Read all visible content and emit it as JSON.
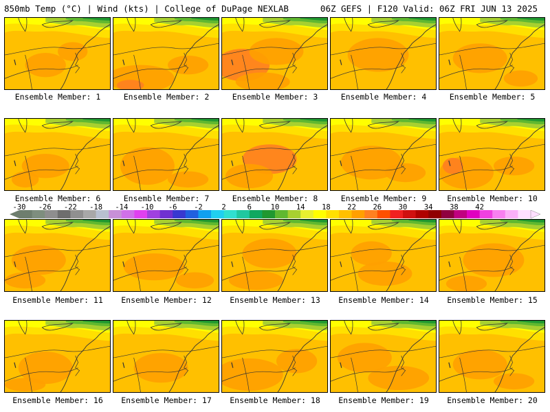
{
  "header": {
    "left": "850mb Temp (°C) | Wind (kts) | College of DuPage NEXLAB",
    "right": "06Z GEFS | F120 Valid: 06Z FRI JUN 13 2025"
  },
  "colorbar": {
    "ticks": [
      "-30",
      "-26",
      "-22",
      "-18",
      "-14",
      "-10",
      "-6",
      "-2",
      "2",
      "6",
      "10",
      "14",
      "18",
      "22",
      "26",
      "30",
      "34",
      "38",
      "42"
    ],
    "colors": [
      "#6e7e6e",
      "#7e8e7e",
      "#8e8e8e",
      "#6e6e6e",
      "#909090",
      "#a8a8a8",
      "#b8c0d0",
      "#c890d8",
      "#d070e8",
      "#e040f0",
      "#a040e0",
      "#7030d0",
      "#3838d0",
      "#2060e0",
      "#10a0f0",
      "#20d0f0",
      "#30e0d0",
      "#20c8a0",
      "#10a860",
      "#209830",
      "#60b830",
      "#a8d030",
      "#e8f030",
      "#ffff00",
      "#ffe000",
      "#ffc000",
      "#ffa000",
      "#ff8020",
      "#ff5000",
      "#f02020",
      "#d01010",
      "#b00000",
      "#900000",
      "#900040",
      "#c00080",
      "#e000c0",
      "#f040e0",
      "#f880f0",
      "#fbb0f8",
      "#ffe0ff"
    ]
  },
  "members": [
    {
      "label": "Ensemble Member: 1"
    },
    {
      "label": "Ensemble Member: 2"
    },
    {
      "label": "Ensemble Member: 3"
    },
    {
      "label": "Ensemble Member: 4"
    },
    {
      "label": "Ensemble Member: 5"
    },
    {
      "label": "Ensemble Member: 6"
    },
    {
      "label": "Ensemble Member: 7"
    },
    {
      "label": "Ensemble Member: 8"
    },
    {
      "label": "Ensemble Member: 9"
    },
    {
      "label": "Ensemble Member: 10"
    },
    {
      "label": "Ensemble Member: 11"
    },
    {
      "label": "Ensemble Member: 12"
    },
    {
      "label": "Ensemble Member: 13"
    },
    {
      "label": "Ensemble Member: 14"
    },
    {
      "label": "Ensemble Member: 15"
    },
    {
      "label": "Ensemble Member: 16"
    },
    {
      "label": "Ensemble Member: 17"
    },
    {
      "label": "Ensemble Member: 18"
    },
    {
      "label": "Ensemble Member: 19"
    },
    {
      "label": "Ensemble Member: 20"
    }
  ],
  "map_colors": {
    "base": "#ffc000",
    "warm": "#ffa000",
    "hot": "#ff8020",
    "cool": "#ffe000",
    "cooler": "#ffff00",
    "green_light": "#a8d030",
    "green": "#60b830",
    "green_dark": "#209830",
    "lines": "#333333"
  }
}
